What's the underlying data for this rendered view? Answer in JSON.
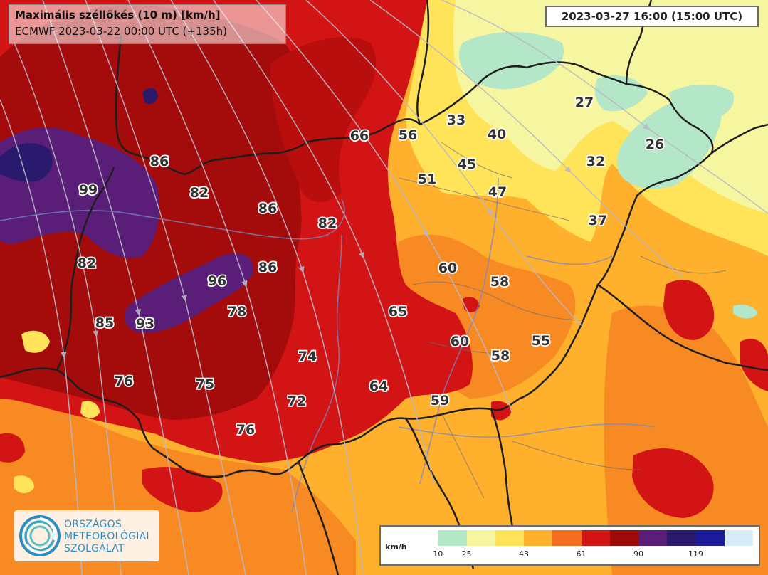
{
  "header": {
    "title": "Maximális széllökés (10 m) [km/h]",
    "subtitle": "ECMWF 2023-03-22 00:00 UTC (+135h)"
  },
  "valid_time": "2023-03-27 16:00 (15:00 UTC)",
  "logo": {
    "lines": [
      "ORSZÁGOS",
      "METEOROLÓGIAI",
      "SZOLGÁLAT"
    ],
    "color": "#2a8ec2"
  },
  "legend": {
    "unit": "km/h",
    "tick_labels": [
      "10",
      "25",
      "43",
      "61",
      "90",
      "119"
    ],
    "colors": [
      "#ffffff",
      "#b4e6c8",
      "#f6f6a0",
      "#ffe45a",
      "#ffb02c",
      "#f36e1e",
      "#d21414",
      "#9c0a0a",
      "#5a1e78",
      "#2a1a6e",
      "#1a1a9a",
      "#d8ecf8"
    ]
  },
  "labels": [
    {
      "text": "86"
    },
    {
      "text": "99"
    },
    {
      "text": "82"
    },
    {
      "text": "86"
    },
    {
      "text": "82"
    },
    {
      "text": "66"
    },
    {
      "text": "56"
    },
    {
      "text": "33"
    },
    {
      "text": "40"
    },
    {
      "text": "45"
    },
    {
      "text": "51"
    },
    {
      "text": "47"
    },
    {
      "text": "27"
    },
    {
      "text": "26"
    },
    {
      "text": "32"
    },
    {
      "text": "37"
    },
    {
      "text": "82"
    },
    {
      "text": "96"
    },
    {
      "text": "86"
    },
    {
      "text": "78"
    },
    {
      "text": "85"
    },
    {
      "text": "93"
    },
    {
      "text": "60"
    },
    {
      "text": "58"
    },
    {
      "text": "65"
    },
    {
      "text": "60"
    },
    {
      "text": "58"
    },
    {
      "text": "55"
    },
    {
      "text": "74"
    },
    {
      "text": "76"
    },
    {
      "text": "75"
    },
    {
      "text": "72"
    },
    {
      "text": "64"
    },
    {
      "text": "59"
    },
    {
      "text": "76"
    }
  ]
}
